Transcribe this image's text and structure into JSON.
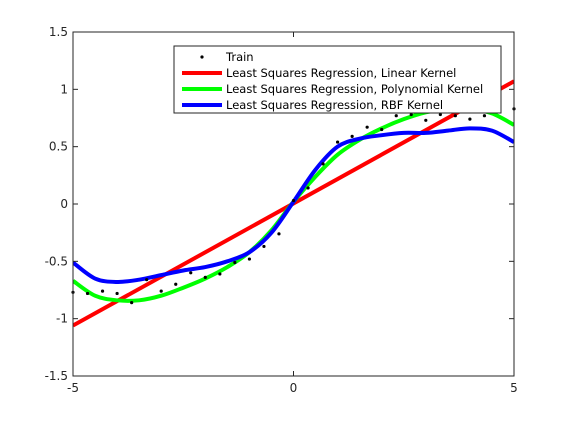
{
  "chart_data": {
    "type": "line",
    "title": "",
    "xlabel": "",
    "ylabel": "",
    "xlim": [
      -5,
      5
    ],
    "ylim": [
      -1.5,
      1.5
    ],
    "grid": false,
    "legend_position": "top-right",
    "x_ticks": [
      -5,
      0,
      5
    ],
    "x_tick_labels": [
      "-5",
      "0",
      "5"
    ],
    "y_ticks": [
      -1.5,
      -1,
      -0.5,
      0,
      0.5,
      1,
      1.5
    ],
    "y_tick_labels": [
      "-1.5",
      "-1",
      "-0.5",
      "0",
      "0.5",
      "1",
      "1.5"
    ],
    "scatter": {
      "name": "Train",
      "color": "#000000",
      "x": [
        -5.0,
        -4.67,
        -4.33,
        -4.0,
        -3.67,
        -3.33,
        -3.0,
        -2.67,
        -2.33,
        -2.0,
        -1.67,
        -1.33,
        -1.0,
        -0.67,
        -0.33,
        0.0,
        0.33,
        0.67,
        1.0,
        1.33,
        1.67,
        2.0,
        2.33,
        2.67,
        3.0,
        3.33,
        3.67,
        4.0,
        4.33,
        4.67,
        5.0
      ],
      "y": [
        -0.77,
        -0.78,
        -0.76,
        -0.78,
        -0.86,
        -0.66,
        -0.76,
        -0.7,
        -0.6,
        -0.64,
        -0.61,
        -0.51,
        -0.48,
        -0.37,
        -0.26,
        0.03,
        0.14,
        0.35,
        0.54,
        0.59,
        0.67,
        0.65,
        0.77,
        0.78,
        0.73,
        0.78,
        0.77,
        0.74,
        0.77,
        0.84,
        0.83
      ]
    },
    "series": [
      {
        "name": "Least Squares Regression, Linear Kernel",
        "color": "#ff0000",
        "x": [
          -5,
          5
        ],
        "y": [
          -1.06,
          1.07
        ]
      },
      {
        "name": "Least Squares Regression, Polynomial Kernel",
        "color": "#00ff00",
        "x": [
          -5.0,
          -4.5,
          -4.0,
          -3.5,
          -3.0,
          -2.5,
          -2.0,
          -1.5,
          -1.0,
          -0.5,
          0.0,
          0.5,
          1.0,
          1.5,
          2.0,
          2.5,
          3.0,
          3.5,
          4.0,
          4.5,
          5.0
        ],
        "y": [
          -0.67,
          -0.8,
          -0.84,
          -0.84,
          -0.8,
          -0.73,
          -0.65,
          -0.55,
          -0.42,
          -0.23,
          0.02,
          0.24,
          0.43,
          0.56,
          0.66,
          0.74,
          0.8,
          0.83,
          0.83,
          0.79,
          0.69
        ]
      },
      {
        "name": "Least Squares Regression, RBF Kernel",
        "color": "#0000ff",
        "x": [
          -5.0,
          -4.5,
          -4.0,
          -3.5,
          -3.0,
          -2.5,
          -2.0,
          -1.5,
          -1.0,
          -0.5,
          0.0,
          0.5,
          1.0,
          1.5,
          2.0,
          2.5,
          3.0,
          3.5,
          4.0,
          4.5,
          5.0
        ],
        "y": [
          -0.51,
          -0.65,
          -0.68,
          -0.66,
          -0.62,
          -0.58,
          -0.55,
          -0.5,
          -0.42,
          -0.25,
          0.02,
          0.3,
          0.5,
          0.57,
          0.6,
          0.62,
          0.62,
          0.64,
          0.66,
          0.64,
          0.54
        ]
      }
    ]
  }
}
